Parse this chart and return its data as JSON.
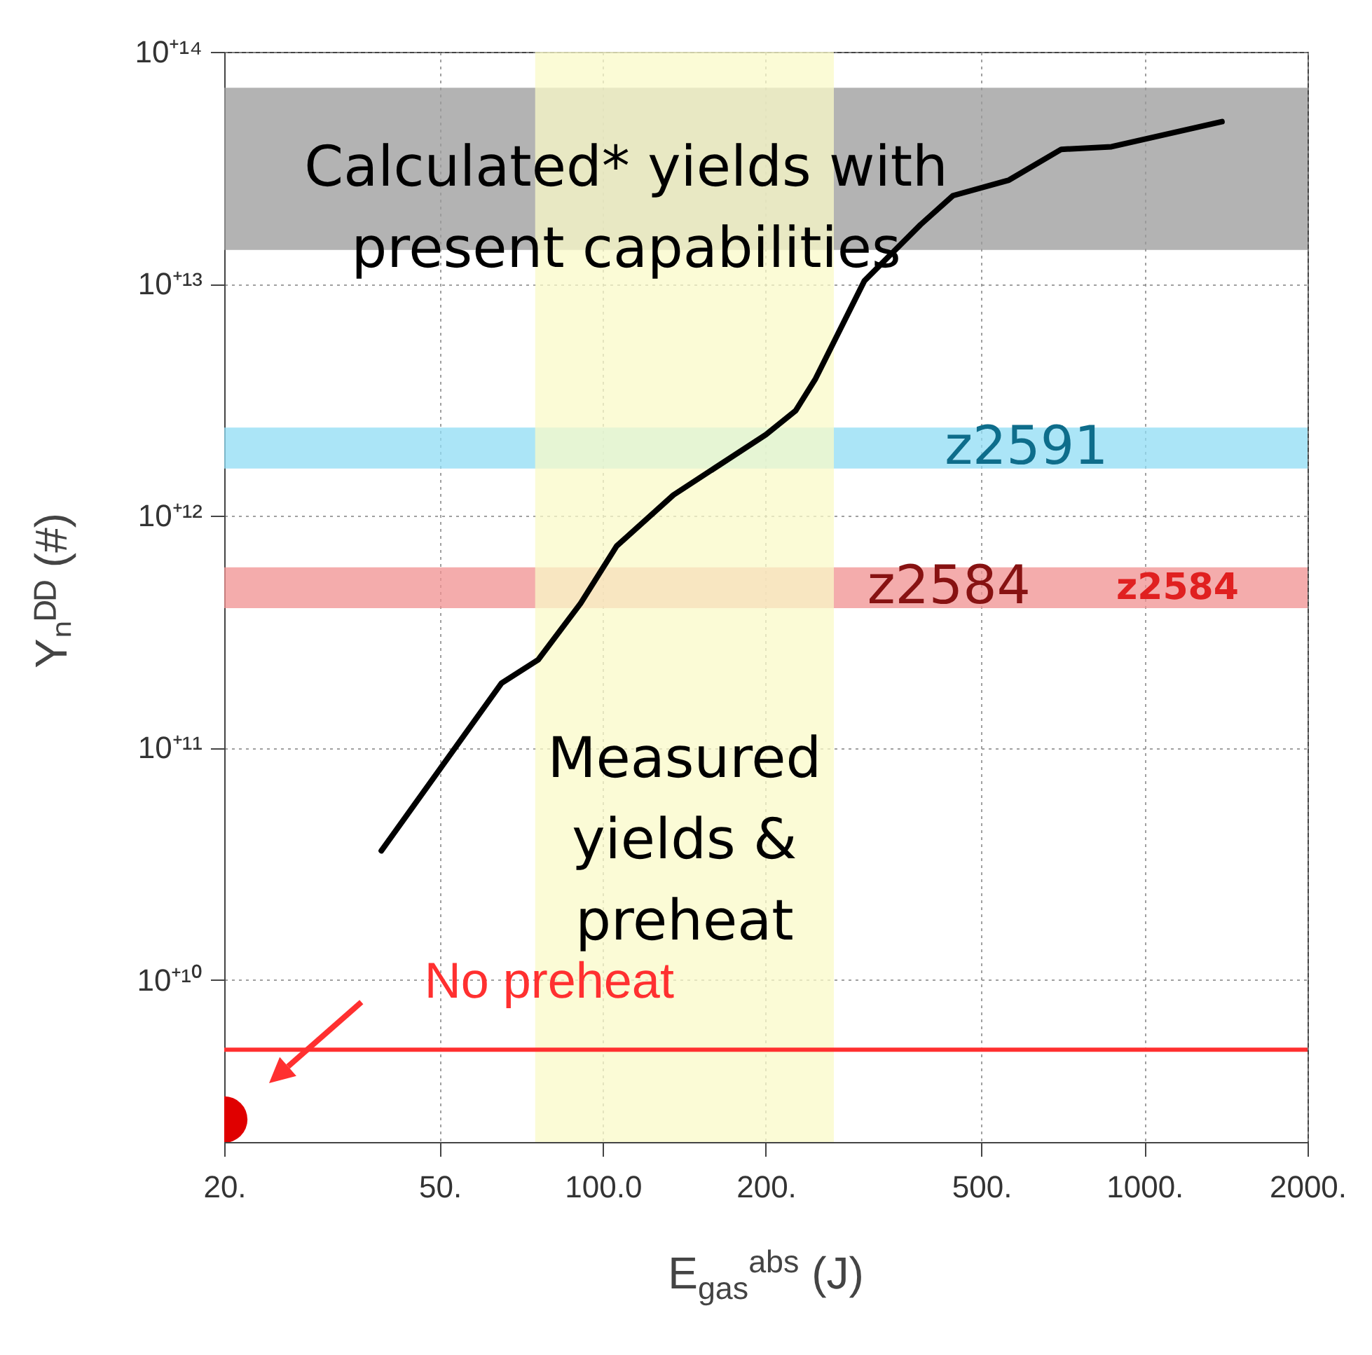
{
  "chart_data": {
    "type": "line",
    "xlabel": "E$_{gas}$$^{abs}$ (J)",
    "ylabel": "Yₙᴰᴰ (#)",
    "log": "xy",
    "grid": true,
    "xlim": [
      20,
      2000
    ],
    "ylim": [
      2000000000.0,
      100000000000000.0
    ],
    "xticks": [
      {
        "value": 20,
        "label": "20."
      },
      {
        "value": 50,
        "label": "50."
      },
      {
        "value": 100,
        "label": "100.0"
      },
      {
        "value": 200,
        "label": "200."
      },
      {
        "value": 500,
        "label": "500."
      },
      {
        "value": 1000,
        "label": "1000."
      },
      {
        "value": 2000,
        "label": "2000."
      }
    ],
    "yticks": [
      {
        "value": 10000000000.0,
        "label": "10⁺¹⁰"
      },
      {
        "value": 100000000000.0,
        "label": "10⁺¹¹"
      },
      {
        "value": 1000000000000.0,
        "label": "10⁺¹²"
      },
      {
        "value": 10000000000000.0,
        "label": "10⁺¹³"
      },
      {
        "value": 100000000000000.0,
        "label": "10⁺¹⁴"
      }
    ],
    "series": [
      {
        "color": "#000000",
        "x": [
          39,
          65,
          76,
          91,
          106,
          135,
          200,
          227,
          247,
          304,
          386,
          443,
          562,
          702,
          869,
          1390
        ],
        "values": [
          36000000000.0,
          190000000000.0,
          240000000000.0,
          420000000000.0,
          740000000000.0,
          1230000000000.0,
          2240000000000.0,
          2840000000000.0,
          3900000000000.0,
          10300000000000.0,
          18000000000000.0,
          24000000000000.0,
          28000000000000.0,
          38000000000000.0,
          39000000000000.0,
          50000000000000.0
        ]
      },
      {
        "type": "scatter",
        "color": "#e00000",
        "x": [
          20
        ],
        "values": [
          2500000000.0
        ]
      }
    ],
    "bands": [
      {
        "axis": "y",
        "from": 14000000000000.0,
        "to": 70000000000000.0,
        "color": "#9a9a9a",
        "label": "Calculated* yields with\npresent capabilities"
      },
      {
        "axis": "y",
        "from": 1600000000000.0,
        "to": 2400000000000.0,
        "color": "#8fdcf4",
        "label": "z2591"
      },
      {
        "axis": "y",
        "from": 400000000000.0,
        "to": 600000000000.0,
        "color": "#f09090",
        "label": "z2584"
      },
      {
        "axis": "x",
        "from": 75,
        "to": 267,
        "color": "#fafac8",
        "label": "Measured\nyields &\npreheat"
      }
    ],
    "ref_lines": [
      {
        "axis": "y",
        "value": 5000000000.0,
        "label": "No preheat",
        "color": "#ff3030"
      }
    ],
    "annotations": [
      "z2584"
    ]
  }
}
